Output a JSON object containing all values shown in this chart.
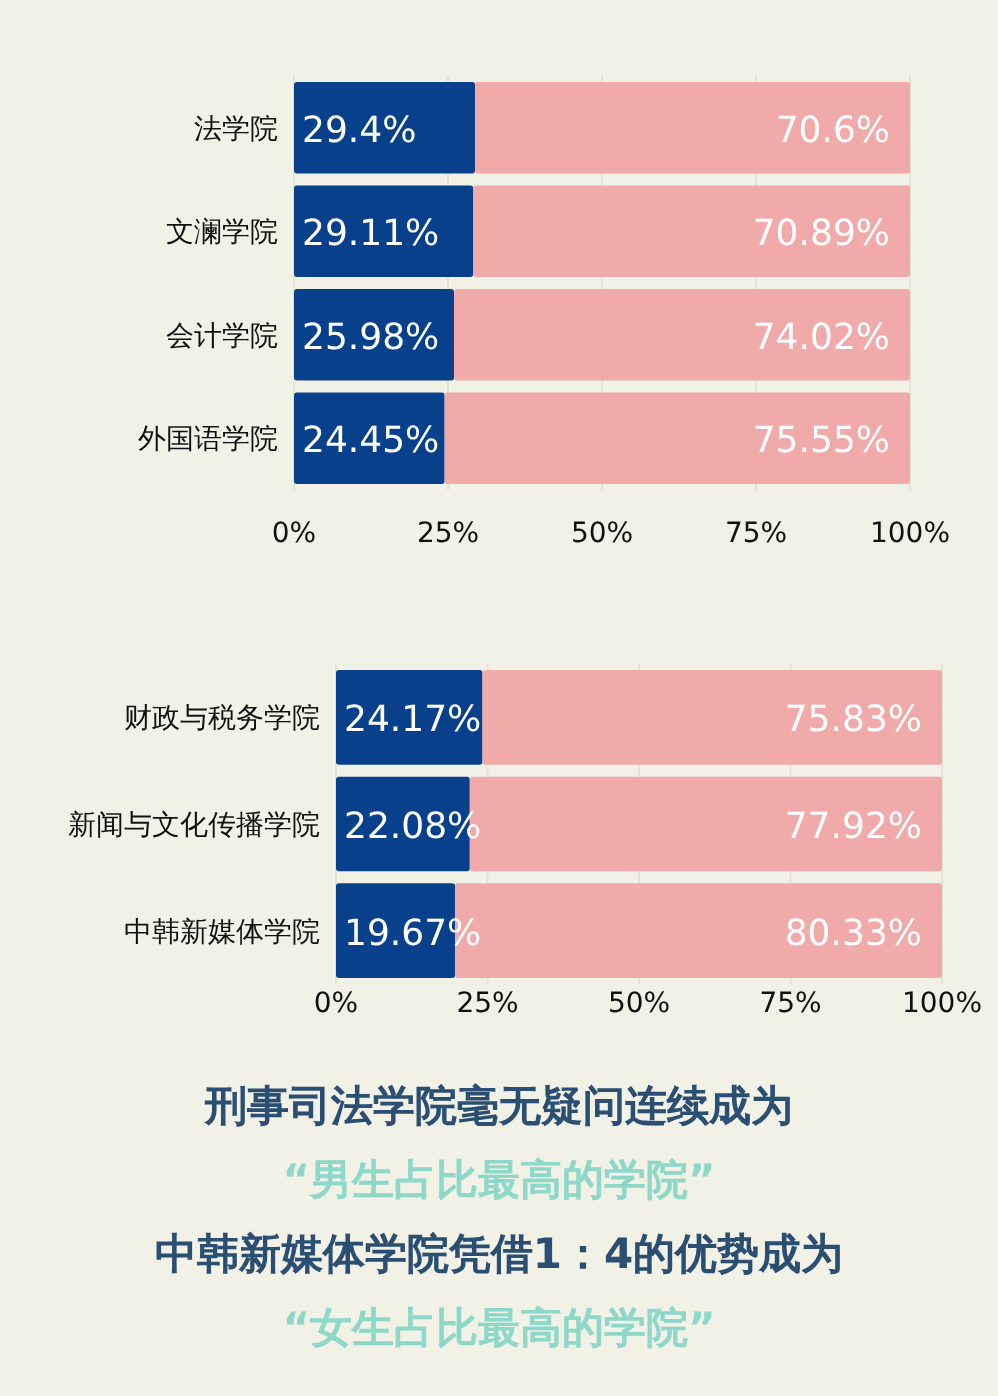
{
  "chart_data": [
    {
      "type": "bar",
      "orientation": "horizontal",
      "stacked": true,
      "categories": [
        "法学院",
        "文澜学院",
        "会计学院",
        "外国语学院"
      ],
      "series": [
        {
          "color": "#08408c",
          "values": [
            29.4,
            29.11,
            25.98,
            24.45
          ],
          "value_labels": [
            "29.4%",
            "29.11%",
            "25.98%",
            "24.45%"
          ]
        },
        {
          "color": "#f0aaaa",
          "values": [
            70.6,
            70.89,
            74.02,
            75.55
          ],
          "value_labels": [
            "70.6%",
            "70.89%",
            "74.02%",
            "75.55%"
          ]
        }
      ],
      "xlim": [
        0,
        100
      ],
      "xticks": [
        {
          "value": 0,
          "label": "0%"
        },
        {
          "value": 25,
          "label": "25%"
        },
        {
          "value": 50,
          "label": "50%"
        },
        {
          "value": 75,
          "label": "75%"
        },
        {
          "value": 100,
          "label": "100%"
        }
      ],
      "grid": "x"
    },
    {
      "type": "bar",
      "orientation": "horizontal",
      "stacked": true,
      "categories": [
        "财政与税务学院",
        "新闻与文化传播学院",
        "中韩新媒体学院"
      ],
      "series": [
        {
          "color": "#08408c",
          "values": [
            24.17,
            22.08,
            19.67
          ],
          "value_labels": [
            "24.17%",
            "22.08%",
            "19.67%"
          ]
        },
        {
          "color": "#f0aaaa",
          "values": [
            75.83,
            77.92,
            80.33
          ],
          "value_labels": [
            "75.83%",
            "77.92%",
            "80.33%"
          ]
        }
      ],
      "xlim": [
        0,
        100
      ],
      "xticks": [
        {
          "value": 0,
          "label": "0%"
        },
        {
          "value": 25,
          "label": "25%"
        },
        {
          "value": 50,
          "label": "50%"
        },
        {
          "value": 75,
          "label": "75%"
        },
        {
          "value": 100,
          "label": "100%"
        }
      ],
      "grid": "x",
      "annotations": [
        "刑事司法学院毫无疑问连续成为",
        "“男生占比最高的学院”",
        "中韩新媒体学院凭借1：4的优势成为",
        "“女生占比最高的学院”"
      ]
    }
  ]
}
